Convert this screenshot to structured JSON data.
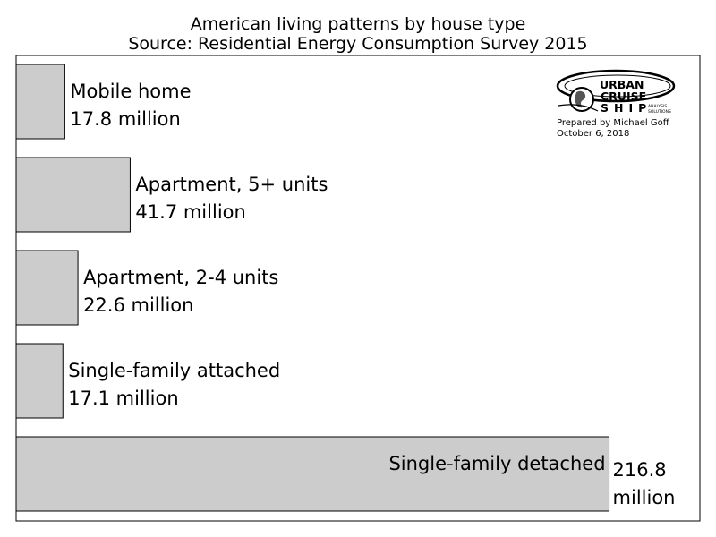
{
  "chart_data": {
    "type": "bar",
    "orientation": "horizontal",
    "title": "American living patterns by house type",
    "subtitle": "Source: Residential Energy Consumption Survey 2015",
    "xlabel": "",
    "ylabel": "",
    "xlim": [
      0,
      250
    ],
    "grid": false,
    "categories": [
      "Mobile home",
      "Apartment, 5+ units",
      "Apartment, 2-4 units",
      "Single-family attached",
      "Single-family detached"
    ],
    "values": [
      17.8,
      41.7,
      22.6,
      17.1,
      216.8
    ],
    "value_labels": [
      "17.8 million",
      "41.7 million",
      "22.6 million",
      "17.1 million",
      "216.8 million"
    ],
    "bar_color": "#cccccc"
  },
  "credit": {
    "prepared_by": "Prepared by Michael Goff",
    "date": "October 6, 2018",
    "logo": {
      "line1": "URBAN",
      "line2": "CRUISE",
      "line3": "SHIP",
      "tag1": "ANALYSIS",
      "tag2": "SOLUTIONS"
    }
  }
}
